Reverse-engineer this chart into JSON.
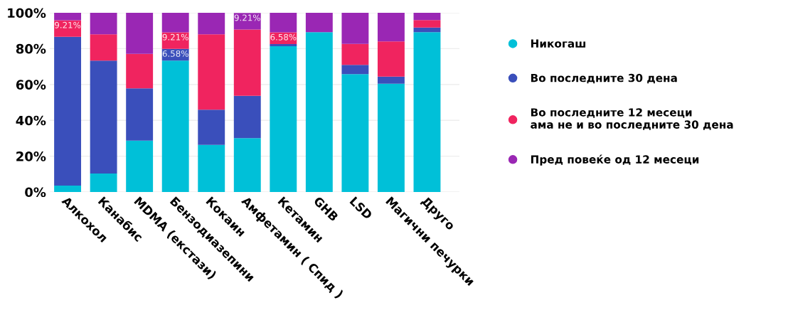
{
  "chart_data": {
    "type": "bar",
    "stacked": true,
    "categories": [
      "Алкохол",
      "Канабис",
      "MDMA (екстази)",
      "Бензодиазепини",
      "Кокаин",
      "Амфетамин ( Спид )",
      "Кетамин",
      "GHB",
      "LSD",
      "Магични печурки",
      "Друго"
    ],
    "series": [
      {
        "name": "Никогаш",
        "color": "#00c0d8",
        "values": [
          3.6,
          10.3,
          28.7,
          73.3,
          26.3,
          30.1,
          81.3,
          89.2,
          65.8,
          60.4,
          89.2
        ]
      },
      {
        "name": "Во последните 30 дена",
        "color": "#3a4fbb",
        "values": [
          83.0,
          63.0,
          29.1,
          6.58,
          19.6,
          23.6,
          1.2,
          null,
          5.1,
          4.0,
          2.6
        ],
        "value_labels": [
          null,
          null,
          null,
          "6.58%",
          null,
          null,
          null,
          null,
          null,
          null,
          null
        ]
      },
      {
        "name": "Во последните 12 месеци\nама не и во последните 30 дена",
        "color": "#f0245f",
        "values": [
          9.21,
          14.7,
          19.3,
          9.21,
          42.1,
          37.0,
          6.58,
          null,
          11.7,
          19.6,
          4.1
        ],
        "value_labels": [
          "9.21%",
          null,
          null,
          "9.21%",
          null,
          null,
          "6.58%",
          null,
          null,
          null,
          null
        ]
      },
      {
        "name": "Пред повеќе од 12 месеци",
        "color": "#9a27b4",
        "values": [
          4.2,
          12.0,
          22.9,
          10.9,
          12.0,
          9.21,
          10.9,
          10.8,
          17.4,
          16.0,
          4.1
        ],
        "value_labels": [
          null,
          null,
          null,
          null,
          null,
          "9.21%",
          null,
          null,
          null,
          null,
          null
        ]
      }
    ],
    "ylim": [
      0,
      100
    ],
    "yticks": [
      {
        "value": 0,
        "label": "0%"
      },
      {
        "value": 20,
        "label": "20%"
      },
      {
        "value": 40,
        "label": "40%"
      },
      {
        "value": 60,
        "label": "60%"
      },
      {
        "value": 80,
        "label": "80%"
      },
      {
        "value": 100,
        "label": "100%"
      }
    ],
    "grid": "y",
    "legend": "right",
    "marker": "circle"
  }
}
